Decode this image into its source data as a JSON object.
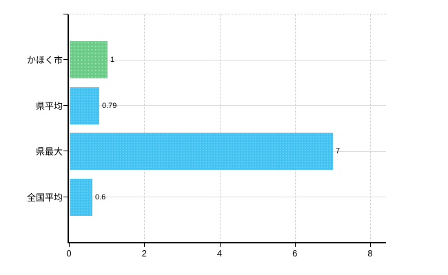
{
  "chart_data": {
    "type": "bar",
    "orientation": "horizontal",
    "title": "",
    "xlabel": "",
    "ylabel": "",
    "categories": [
      "かほく市",
      "県平均",
      "県最大",
      "全国平均"
    ],
    "values": [
      1,
      0.79,
      7,
      0.6
    ],
    "value_labels": [
      "1",
      "0.79",
      "7",
      "0.6"
    ],
    "bar_colors": [
      "green",
      "blue",
      "blue",
      "blue"
    ],
    "x_ticks": [
      0,
      2,
      4,
      6,
      8
    ],
    "x_tick_labels": [
      "0",
      "2",
      "4",
      "6",
      "8"
    ],
    "xlim": [
      0,
      8.42
    ],
    "grid": true,
    "legend_position": "none",
    "colors": {
      "bar_green": "#69cb86",
      "bar_blue": "#41c2f1",
      "grid_solid": "#d9ded9",
      "grid_dashed": "#d4d0d4",
      "axis": "#000000",
      "text": "#000000",
      "background": "#ffffff"
    }
  }
}
